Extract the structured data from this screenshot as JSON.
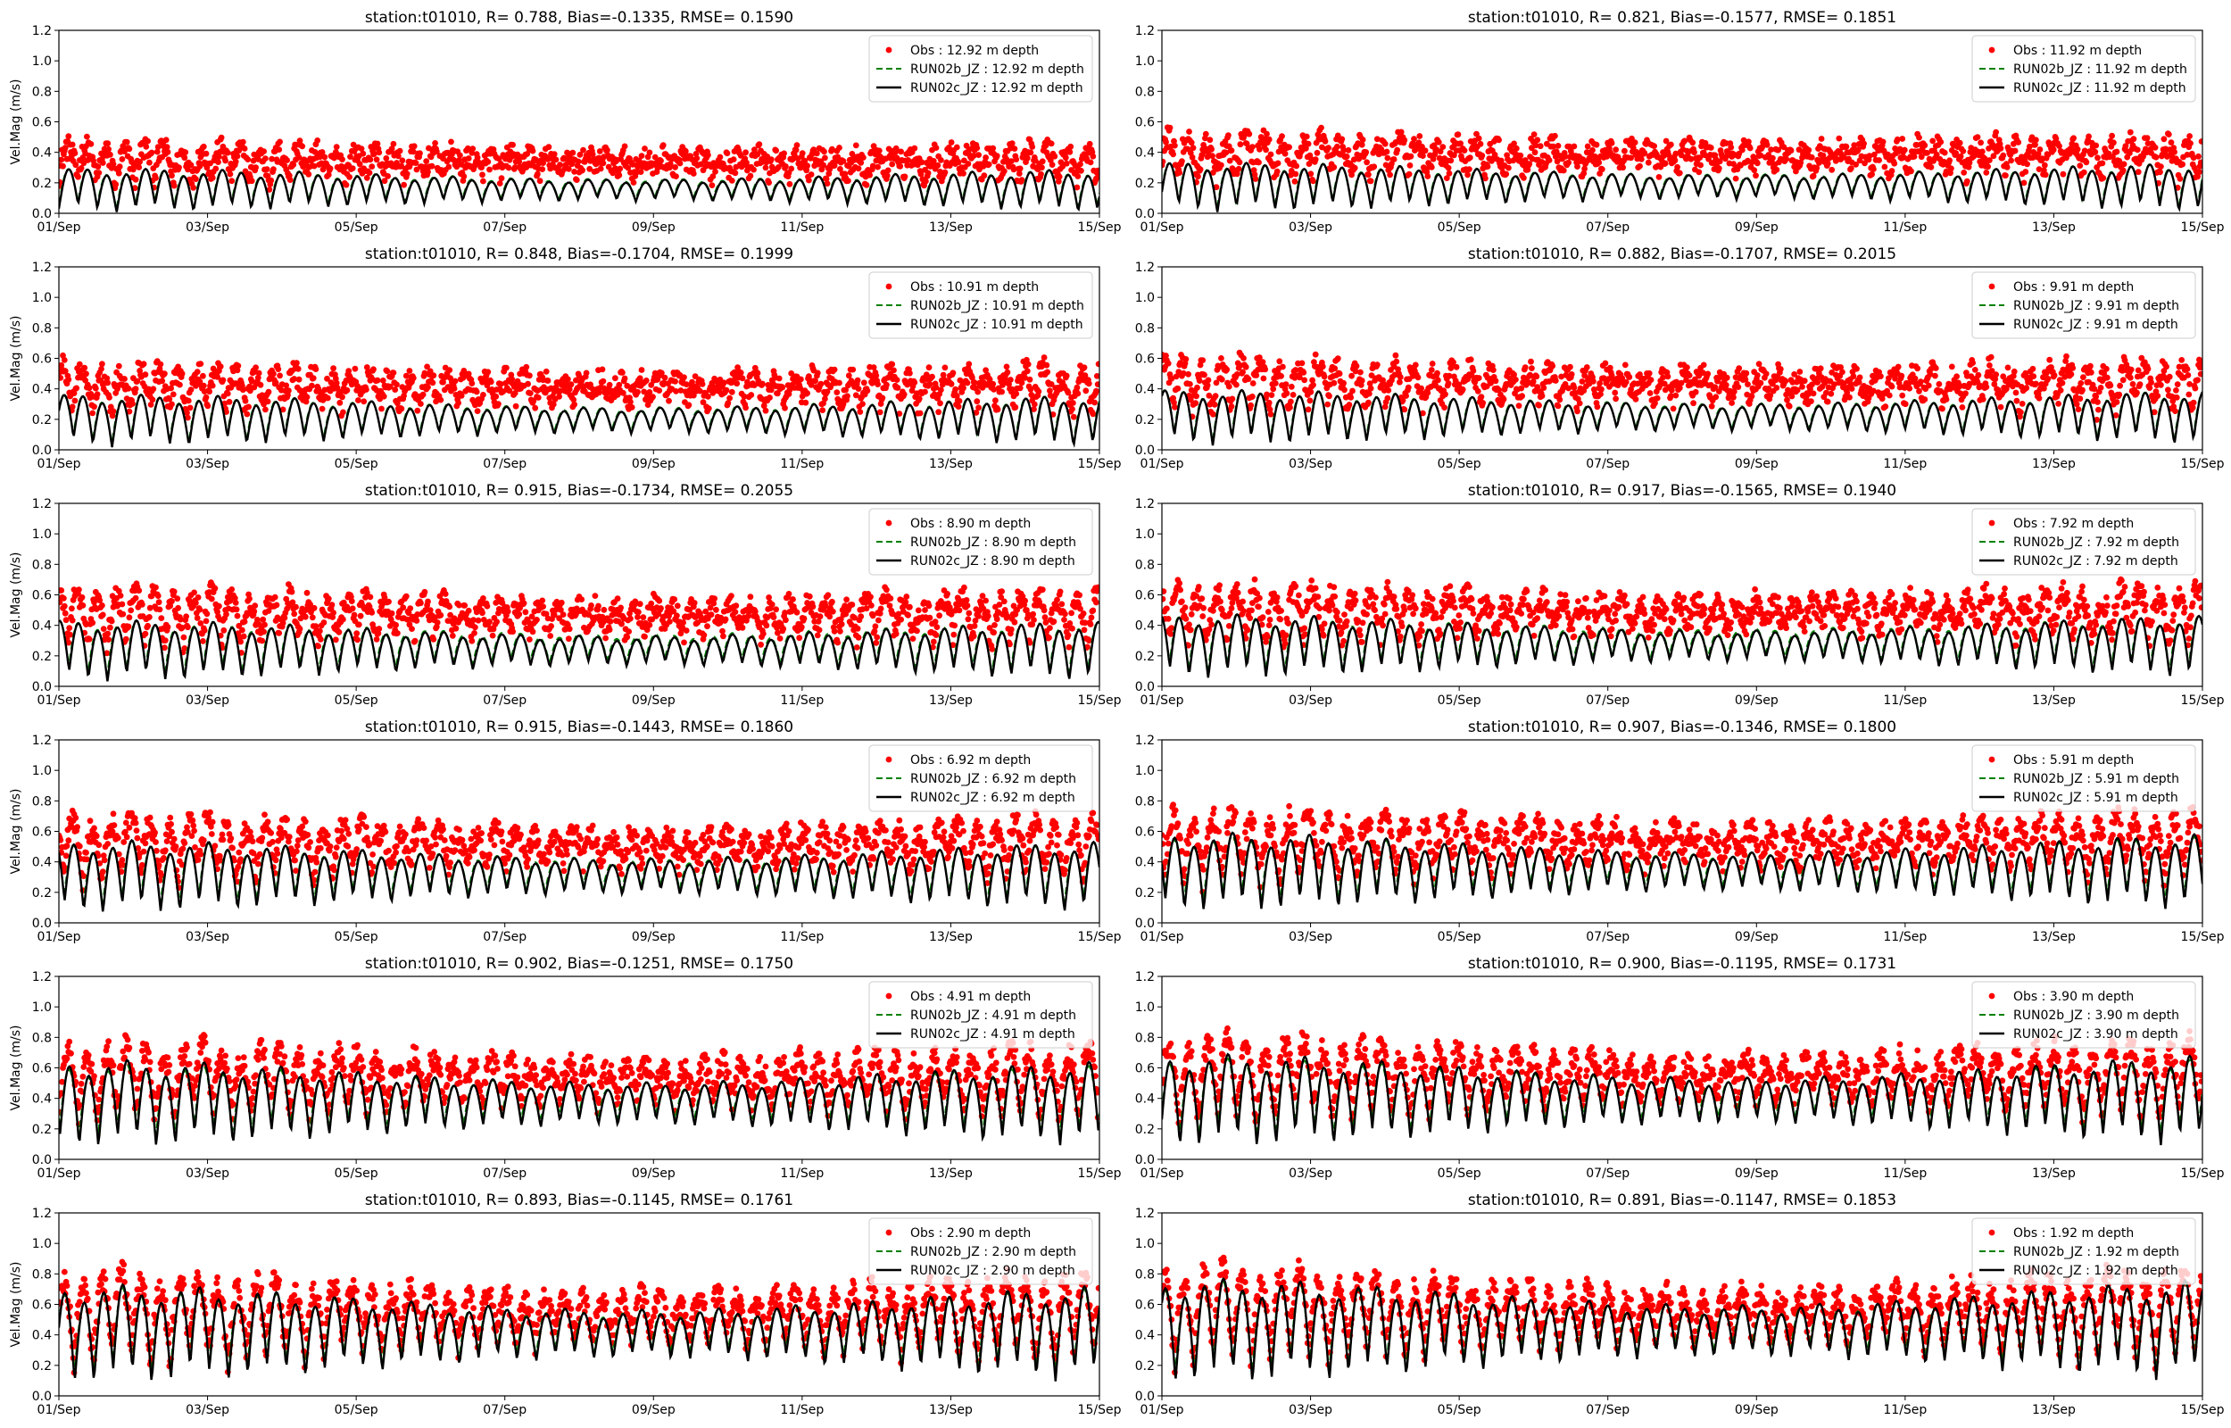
{
  "figure": {
    "ylabel": "Vel.Mag (m/s)",
    "yticks": [
      "0.0",
      "0.2",
      "0.4",
      "0.6",
      "0.8",
      "1.0",
      "1.2"
    ],
    "xticks": [
      "01/Sep",
      "03/Sep",
      "05/Sep",
      "07/Sep",
      "09/Sep",
      "11/Sep",
      "13/Sep",
      "15/Sep"
    ],
    "colors": {
      "obs": "#ff0000",
      "run02b": "#008000",
      "run02c": "#000000"
    }
  },
  "chart_data": [
    {
      "type": "line",
      "title": "station:t01010, R= 0.788, Bias=-0.1335, RMSE= 0.1590",
      "xlabel": "",
      "ylabel": "Vel.Mag (m/s)",
      "ylim": [
        0,
        1.2
      ],
      "xlim": [
        "01/Sep",
        "15/Sep"
      ],
      "grid": false,
      "legend_position": "upper right",
      "series": [
        {
          "name": "Obs : 12.92 m depth",
          "style": "red dots",
          "mean": 0.32,
          "amplitude": 0.12
        },
        {
          "name": "RUN02b_JZ : 12.92 m depth",
          "style": "green dashed",
          "mean": 0.16,
          "amplitude": 0.14
        },
        {
          "name": "RUN02c_JZ : 12.92 m depth",
          "style": "black solid",
          "mean": 0.15,
          "amplitude": 0.15
        }
      ]
    },
    {
      "type": "line",
      "title": "station:t01010, R= 0.821, Bias=-0.1577, RMSE= 0.1851",
      "xlabel": "",
      "ylabel": "",
      "ylim": [
        0,
        1.2
      ],
      "xlim": [
        "01/Sep",
        "15/Sep"
      ],
      "grid": false,
      "legend_position": "upper right",
      "series": [
        {
          "name": "Obs : 11.92 m depth",
          "style": "red dots",
          "mean": 0.36,
          "amplitude": 0.14
        },
        {
          "name": "RUN02b_JZ : 11.92 m depth",
          "style": "green dashed",
          "mean": 0.18,
          "amplitude": 0.16
        },
        {
          "name": "RUN02c_JZ : 11.92 m depth",
          "style": "black solid",
          "mean": 0.17,
          "amplitude": 0.17
        }
      ]
    },
    {
      "type": "line",
      "title": "station:t01010, R= 0.848, Bias=-0.1704, RMSE= 0.1999",
      "xlabel": "",
      "ylabel": "Vel.Mag (m/s)",
      "ylim": [
        0,
        1.2
      ],
      "xlim": [
        "01/Sep",
        "15/Sep"
      ],
      "grid": false,
      "legend_position": "upper right",
      "series": [
        {
          "name": "Obs : 10.91 m depth",
          "style": "red dots",
          "mean": 0.39,
          "amplitude": 0.16
        },
        {
          "name": "RUN02b_JZ : 10.91 m depth",
          "style": "green dashed",
          "mean": 0.2,
          "amplitude": 0.17
        },
        {
          "name": "RUN02c_JZ : 10.91 m depth",
          "style": "black solid",
          "mean": 0.19,
          "amplitude": 0.18
        }
      ]
    },
    {
      "type": "line",
      "title": "station:t01010, R= 0.882, Bias=-0.1707, RMSE= 0.2015",
      "xlabel": "",
      "ylabel": "",
      "ylim": [
        0,
        1.2
      ],
      "xlim": [
        "01/Sep",
        "15/Sep"
      ],
      "grid": false,
      "legend_position": "upper right",
      "series": [
        {
          "name": "Obs : 9.91 m depth",
          "style": "red dots",
          "mean": 0.41,
          "amplitude": 0.17
        },
        {
          "name": "RUN02b_JZ : 9.91 m depth",
          "style": "green dashed",
          "mean": 0.22,
          "amplitude": 0.18
        },
        {
          "name": "RUN02c_JZ : 9.91 m depth",
          "style": "black solid",
          "mean": 0.21,
          "amplitude": 0.19
        }
      ]
    },
    {
      "type": "line",
      "title": "station:t01010, R= 0.915, Bias=-0.1734, RMSE= 0.2055",
      "xlabel": "",
      "ylabel": "Vel.Mag (m/s)",
      "ylim": [
        0,
        1.2
      ],
      "xlim": [
        "01/Sep",
        "15/Sep"
      ],
      "grid": false,
      "legend_position": "upper right",
      "series": [
        {
          "name": "Obs : 8.90 m depth",
          "style": "red dots",
          "mean": 0.44,
          "amplitude": 0.19
        },
        {
          "name": "RUN02b_JZ : 8.90 m depth",
          "style": "green dashed",
          "mean": 0.25,
          "amplitude": 0.19
        },
        {
          "name": "RUN02c_JZ : 8.90 m depth",
          "style": "black solid",
          "mean": 0.23,
          "amplitude": 0.21
        }
      ]
    },
    {
      "type": "line",
      "title": "station:t01010, R= 0.917, Bias=-0.1565, RMSE= 0.1940",
      "xlabel": "",
      "ylabel": "",
      "ylim": [
        0,
        1.2
      ],
      "xlim": [
        "01/Sep",
        "15/Sep"
      ],
      "grid": false,
      "legend_position": "upper right",
      "series": [
        {
          "name": "Obs : 7.92 m depth",
          "style": "red dots",
          "mean": 0.46,
          "amplitude": 0.2
        },
        {
          "name": "RUN02b_JZ : 7.92 m depth",
          "style": "green dashed",
          "mean": 0.28,
          "amplitude": 0.2
        },
        {
          "name": "RUN02c_JZ : 7.92 m depth",
          "style": "black solid",
          "mean": 0.26,
          "amplitude": 0.22
        }
      ]
    },
    {
      "type": "line",
      "title": "station:t01010, R= 0.915, Bias=-0.1443, RMSE= 0.1860",
      "xlabel": "",
      "ylabel": "Vel.Mag (m/s)",
      "ylim": [
        0,
        1.2
      ],
      "xlim": [
        "01/Sep",
        "15/Sep"
      ],
      "grid": false,
      "legend_position": "upper right",
      "series": [
        {
          "name": "Obs : 6.92 m depth",
          "style": "red dots",
          "mean": 0.48,
          "amplitude": 0.22
        },
        {
          "name": "RUN02b_JZ : 6.92 m depth",
          "style": "green dashed",
          "mean": 0.32,
          "amplitude": 0.22
        },
        {
          "name": "RUN02c_JZ : 6.92 m depth",
          "style": "black solid",
          "mean": 0.3,
          "amplitude": 0.25
        }
      ]
    },
    {
      "type": "line",
      "title": "station:t01010, R= 0.907, Bias=-0.1346, RMSE= 0.1800",
      "xlabel": "",
      "ylabel": "",
      "ylim": [
        0,
        1.2
      ],
      "xlim": [
        "01/Sep",
        "15/Sep"
      ],
      "grid": false,
      "legend_position": "upper right",
      "series": [
        {
          "name": "Obs : 5.91 m depth",
          "style": "red dots",
          "mean": 0.5,
          "amplitude": 0.24
        },
        {
          "name": "RUN02b_JZ : 5.91 m depth",
          "style": "green dashed",
          "mean": 0.35,
          "amplitude": 0.23
        },
        {
          "name": "RUN02c_JZ : 5.91 m depth",
          "style": "black solid",
          "mean": 0.33,
          "amplitude": 0.27
        }
      ]
    },
    {
      "type": "line",
      "title": "station:t01010, R= 0.902, Bias=-0.1251, RMSE= 0.1750",
      "xlabel": "",
      "ylabel": "Vel.Mag (m/s)",
      "ylim": [
        0,
        1.2
      ],
      "xlim": [
        "01/Sep",
        "15/Sep"
      ],
      "grid": false,
      "legend_position": "upper right",
      "series": [
        {
          "name": "Obs : 4.91 m depth",
          "style": "red dots",
          "mean": 0.5,
          "amplitude": 0.27
        },
        {
          "name": "RUN02b_JZ : 4.91 m depth",
          "style": "green dashed",
          "mean": 0.38,
          "amplitude": 0.25
        },
        {
          "name": "RUN02c_JZ : 4.91 m depth",
          "style": "black solid",
          "mean": 0.36,
          "amplitude": 0.3
        }
      ]
    },
    {
      "type": "line",
      "title": "station:t01010, R= 0.900, Bias=-0.1195, RMSE= 0.1731",
      "xlabel": "",
      "ylabel": "",
      "ylim": [
        0,
        1.2
      ],
      "xlim": [
        "01/Sep",
        "15/Sep"
      ],
      "grid": false,
      "legend_position": "upper right",
      "series": [
        {
          "name": "Obs : 3.90 m depth",
          "style": "red dots",
          "mean": 0.52,
          "amplitude": 0.29
        },
        {
          "name": "RUN02b_JZ : 3.90 m depth",
          "style": "green dashed",
          "mean": 0.4,
          "amplitude": 0.27
        },
        {
          "name": "RUN02c_JZ : 3.90 m depth",
          "style": "black solid",
          "mean": 0.38,
          "amplitude": 0.32
        }
      ]
    },
    {
      "type": "line",
      "title": "station:t01010, R= 0.893, Bias=-0.1145, RMSE= 0.1761",
      "xlabel": "",
      "ylabel": "Vel.Mag (m/s)",
      "ylim": [
        0,
        1.2
      ],
      "xlim": [
        "01/Sep",
        "15/Sep"
      ],
      "grid": false,
      "legend_position": "upper right",
      "series": [
        {
          "name": "Obs : 2.90 m depth",
          "style": "red dots",
          "mean": 0.5,
          "amplitude": 0.32
        },
        {
          "name": "RUN02b_JZ : 2.90 m depth",
          "style": "green dashed",
          "mean": 0.42,
          "amplitude": 0.3
        },
        {
          "name": "RUN02c_JZ : 2.90 m depth",
          "style": "black solid",
          "mean": 0.4,
          "amplitude": 0.34
        }
      ]
    },
    {
      "type": "line",
      "title": "station:t01010, R= 0.891, Bias=-0.1147, RMSE= 0.1853",
      "xlabel": "",
      "ylabel": "",
      "ylim": [
        0,
        1.2
      ],
      "xlim": [
        "01/Sep",
        "15/Sep"
      ],
      "grid": false,
      "legend_position": "upper right",
      "series": [
        {
          "name": "Obs : 1.92 m depth",
          "style": "red dots",
          "mean": 0.52,
          "amplitude": 0.33
        },
        {
          "name": "RUN02b_JZ : 1.92 m depth",
          "style": "green dashed",
          "mean": 0.44,
          "amplitude": 0.32
        },
        {
          "name": "RUN02c_JZ : 1.92 m depth",
          "style": "black solid",
          "mean": 0.42,
          "amplitude": 0.36
        }
      ]
    }
  ]
}
